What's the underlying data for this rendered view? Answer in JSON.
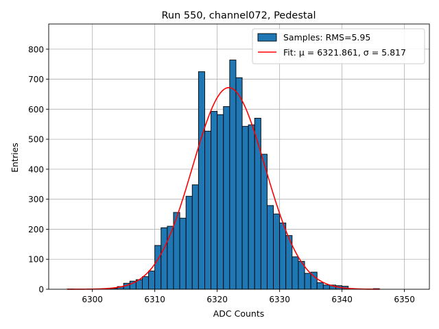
{
  "chart_data": {
    "type": "bar",
    "title": "Run 550, channel072, Pedestal",
    "xlabel": "ADC Counts",
    "ylabel": "Entries",
    "xlim": [
      6293,
      6354
    ],
    "ylim": [
      0,
      884
    ],
    "xticks": [
      6300,
      6310,
      6320,
      6330,
      6340,
      6350
    ],
    "yticks": [
      0,
      100,
      200,
      300,
      400,
      500,
      600,
      700,
      800
    ],
    "grid": true,
    "legend_position": "top-right",
    "colors": {
      "bars": "#1f77b4",
      "bar_edge": "#000000",
      "fit": "#ff0000",
      "grid": "#b0b0b0"
    },
    "histogram": {
      "name": "Samples: RMS=5.95",
      "bin_width": 1,
      "bins": [
        {
          "x0": 6296,
          "value": 1
        },
        {
          "x0": 6297,
          "value": 0
        },
        {
          "x0": 6298,
          "value": 0
        },
        {
          "x0": 6299,
          "value": 0
        },
        {
          "x0": 6300,
          "value": 1
        },
        {
          "x0": 6301,
          "value": 0
        },
        {
          "x0": 6302,
          "value": 2
        },
        {
          "x0": 6303,
          "value": 3
        },
        {
          "x0": 6304,
          "value": 9
        },
        {
          "x0": 6305,
          "value": 20
        },
        {
          "x0": 6306,
          "value": 27
        },
        {
          "x0": 6307,
          "value": 32
        },
        {
          "x0": 6308,
          "value": 42
        },
        {
          "x0": 6309,
          "value": 61
        },
        {
          "x0": 6310,
          "value": 146
        },
        {
          "x0": 6311,
          "value": 205
        },
        {
          "x0": 6312,
          "value": 210
        },
        {
          "x0": 6313,
          "value": 256
        },
        {
          "x0": 6314,
          "value": 237
        },
        {
          "x0": 6315,
          "value": 310
        },
        {
          "x0": 6316,
          "value": 348
        },
        {
          "x0": 6317,
          "value": 725
        },
        {
          "x0": 6318,
          "value": 527
        },
        {
          "x0": 6319,
          "value": 593
        },
        {
          "x0": 6320,
          "value": 582
        },
        {
          "x0": 6321,
          "value": 609
        },
        {
          "x0": 6322,
          "value": 764
        },
        {
          "x0": 6323,
          "value": 705
        },
        {
          "x0": 6324,
          "value": 543
        },
        {
          "x0": 6325,
          "value": 548
        },
        {
          "x0": 6326,
          "value": 570
        },
        {
          "x0": 6327,
          "value": 450
        },
        {
          "x0": 6328,
          "value": 279
        },
        {
          "x0": 6329,
          "value": 251
        },
        {
          "x0": 6330,
          "value": 221
        },
        {
          "x0": 6331,
          "value": 179
        },
        {
          "x0": 6332,
          "value": 108
        },
        {
          "x0": 6333,
          "value": 93
        },
        {
          "x0": 6334,
          "value": 53
        },
        {
          "x0": 6335,
          "value": 57
        },
        {
          "x0": 6336,
          "value": 22
        },
        {
          "x0": 6337,
          "value": 14
        },
        {
          "x0": 6338,
          "value": 14
        },
        {
          "x0": 6339,
          "value": 12
        },
        {
          "x0": 6340,
          "value": 10
        },
        {
          "x0": 6341,
          "value": 0
        },
        {
          "x0": 6342,
          "value": 0
        },
        {
          "x0": 6343,
          "value": 0
        },
        {
          "x0": 6344,
          "value": 0
        },
        {
          "x0": 6345,
          "value": 2
        }
      ]
    },
    "fit": {
      "name": "Fit: μ = 6321.861, σ = 5.817",
      "type": "gaussian",
      "mu": 6321.861,
      "sigma": 5.817,
      "amplitude": 672,
      "x_range": [
        6296,
        6346
      ]
    },
    "legend": [
      {
        "label": "Samples: RMS=5.95",
        "kind": "patch"
      },
      {
        "label": "Fit: μ = 6321.861, σ = 5.817",
        "kind": "line"
      }
    ]
  }
}
